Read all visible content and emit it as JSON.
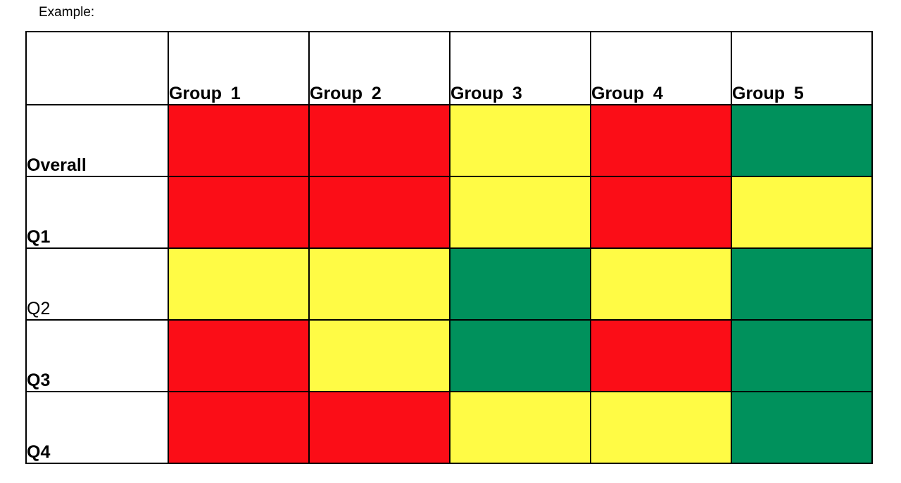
{
  "chart_data": {
    "type": "heatmap",
    "title": "Example:",
    "columns": [
      "Group 1",
      "Group 2",
      "Group 3",
      "Group 4",
      "Group 5"
    ],
    "rows": [
      {
        "label": "Overall",
        "weight": "bold"
      },
      {
        "label": "Q1",
        "weight": "bold"
      },
      {
        "label": "Q2",
        "weight": "regular"
      },
      {
        "label": "Q3",
        "weight": "bold"
      },
      {
        "label": "Q4",
        "weight": "bold"
      }
    ],
    "values": [
      [
        "red",
        "red",
        "yellow",
        "red",
        "green"
      ],
      [
        "red",
        "red",
        "yellow",
        "red",
        "yellow"
      ],
      [
        "yellow",
        "yellow",
        "green",
        "yellow",
        "green"
      ],
      [
        "red",
        "yellow",
        "green",
        "red",
        "green"
      ],
      [
        "red",
        "red",
        "yellow",
        "yellow",
        "green"
      ]
    ],
    "color_map": {
      "red": "#FB0D17",
      "yellow": "#FFFB45",
      "green": "#00915C"
    },
    "grid": true,
    "legend_position": "none"
  }
}
